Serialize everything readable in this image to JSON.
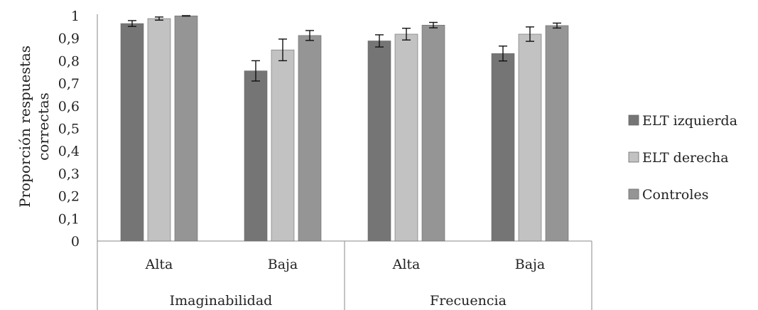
{
  "chart_data": {
    "type": "bar",
    "title": "",
    "ylabel_lines": [
      "Proporción respuestas",
      "correctas"
    ],
    "ylim": [
      0,
      1
    ],
    "y_ticks": [
      "0",
      "0,1",
      "0,2",
      "0,3",
      "0,4",
      "0,5",
      "0,6",
      "0,7",
      "0,8",
      "0,9",
      "1"
    ],
    "groups": [
      {
        "label": "Imaginabilidad",
        "categories": [
          "Alta",
          "Baja"
        ]
      },
      {
        "label": "Frecuencia",
        "categories": [
          "Alta",
          "Baja"
        ]
      }
    ],
    "series": [
      {
        "name": "ELT izquierda",
        "color": "#757575",
        "values": [
          0.965,
          0.755,
          0.888,
          0.832
        ],
        "errors": [
          0.013,
          0.045,
          0.027,
          0.033
        ]
      },
      {
        "name": "ELT derecha",
        "color": "#c2c2c2",
        "values": [
          0.987,
          0.848,
          0.918,
          0.918
        ],
        "errors": [
          0.007,
          0.048,
          0.026,
          0.032
        ]
      },
      {
        "name": "Controles",
        "color": "#959595",
        "values": [
          0.999,
          0.912,
          0.958,
          0.956
        ],
        "errors": [
          0.001,
          0.022,
          0.012,
          0.011
        ]
      }
    ],
    "grid": false,
    "legend_position": "right"
  }
}
